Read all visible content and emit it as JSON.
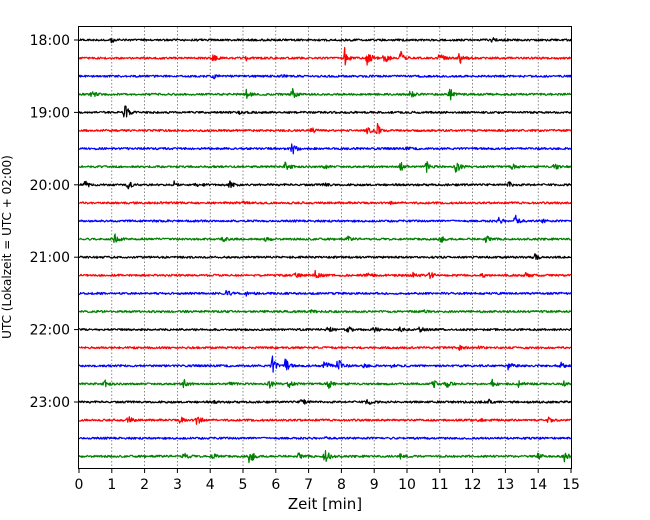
{
  "chart_data": {
    "type": "line",
    "title": "",
    "xlabel": "Zeit  [min]",
    "ylabel": "UTC (Lokalzeit = UTC + 02:00)",
    "xlim": [
      0,
      15
    ],
    "x_ticks": [
      "0",
      "1",
      "2",
      "3",
      "4",
      "5",
      "6",
      "7",
      "8",
      "9",
      "10",
      "11",
      "12",
      "13",
      "14",
      "15"
    ],
    "y_ticks": [
      "18:00",
      "19:00",
      "20:00",
      "21:00",
      "22:00",
      "23:00"
    ],
    "grid": "vertical-dotted",
    "trace_interval_min": 15,
    "trace_colors": [
      "#000000",
      "#ff0000",
      "#0000ff",
      "#008000"
    ],
    "traces": [
      {
        "start": "18:00",
        "events": [
          [
            1.0,
            2
          ],
          [
            12.6,
            2
          ]
        ]
      },
      {
        "start": "18:15",
        "events": [
          [
            4.1,
            3
          ],
          [
            5.1,
            2
          ],
          [
            8.1,
            10
          ],
          [
            8.8,
            9
          ],
          [
            9.3,
            8
          ],
          [
            9.8,
            7
          ],
          [
            11.0,
            5
          ],
          [
            11.6,
            6
          ]
        ]
      },
      {
        "start": "18:30",
        "events": [
          [
            4.1,
            2
          ],
          [
            6.2,
            1
          ]
        ]
      },
      {
        "start": "18:45",
        "events": [
          [
            0.4,
            3
          ],
          [
            5.1,
            5
          ],
          [
            6.5,
            6
          ],
          [
            10.1,
            5
          ],
          [
            11.3,
            7
          ]
        ]
      },
      {
        "start": "19:00",
        "events": [
          [
            1.4,
            8
          ],
          [
            4.9,
            1
          ]
        ]
      },
      {
        "start": "19:15",
        "events": [
          [
            7.1,
            3
          ],
          [
            8.8,
            3
          ],
          [
            9.1,
            6
          ]
        ]
      },
      {
        "start": "19:30",
        "events": [
          [
            6.5,
            8
          ],
          [
            10.0,
            1
          ]
        ]
      },
      {
        "start": "19:45",
        "events": [
          [
            6.3,
            5
          ],
          [
            7.5,
            2
          ],
          [
            9.8,
            5
          ],
          [
            10.6,
            5
          ],
          [
            11.5,
            7
          ],
          [
            13.2,
            3
          ],
          [
            14.5,
            4
          ]
        ]
      },
      {
        "start": "20:00",
        "events": [
          [
            0.2,
            4
          ],
          [
            1.5,
            5
          ],
          [
            2.9,
            3
          ],
          [
            3.6,
            3
          ],
          [
            4.6,
            3
          ],
          [
            7.5,
            2
          ],
          [
            13.1,
            3
          ]
        ]
      },
      {
        "start": "20:15",
        "events": [
          [
            5.0,
            1
          ],
          [
            9.5,
            1
          ]
        ]
      },
      {
        "start": "20:30",
        "events": [
          [
            12.8,
            3
          ],
          [
            13.3,
            6
          ],
          [
            14.1,
            2
          ]
        ]
      },
      {
        "start": "20:45",
        "events": [
          [
            1.1,
            5
          ],
          [
            4.4,
            2
          ],
          [
            5.7,
            2
          ],
          [
            8.2,
            2
          ],
          [
            11.0,
            5
          ],
          [
            12.4,
            4
          ]
        ]
      },
      {
        "start": "21:00",
        "events": [
          [
            13.9,
            4
          ]
        ]
      },
      {
        "start": "21:15",
        "events": [
          [
            6.6,
            3
          ],
          [
            7.2,
            5
          ],
          [
            8.8,
            2
          ],
          [
            10.2,
            3
          ],
          [
            10.7,
            4
          ],
          [
            12.3,
            2
          ],
          [
            13.6,
            3
          ]
        ]
      },
      {
        "start": "21:30",
        "events": [
          [
            4.5,
            3
          ],
          [
            5.1,
            3
          ]
        ]
      },
      {
        "start": "21:45",
        "events": [
          [
            7.1,
            1
          ],
          [
            10.5,
            1
          ]
        ]
      },
      {
        "start": "22:00",
        "events": [
          [
            7.6,
            3
          ],
          [
            8.2,
            4
          ],
          [
            9.0,
            3
          ],
          [
            9.8,
            2
          ],
          [
            10.4,
            3
          ]
        ]
      },
      {
        "start": "22:15",
        "events": [
          [
            11.6,
            2
          ],
          [
            12.2,
            1
          ]
        ]
      },
      {
        "start": "22:30",
        "events": [
          [
            5.9,
            9
          ],
          [
            6.3,
            7
          ],
          [
            7.5,
            7
          ],
          [
            7.9,
            8
          ],
          [
            8.7,
            2
          ],
          [
            9.5,
            2
          ],
          [
            13.1,
            4
          ],
          [
            14.7,
            3
          ]
        ]
      },
      {
        "start": "22:45",
        "events": [
          [
            0.8,
            3
          ],
          [
            3.2,
            4
          ],
          [
            4.6,
            2
          ],
          [
            5.8,
            4
          ],
          [
            6.4,
            4
          ],
          [
            7.6,
            5
          ],
          [
            10.8,
            5
          ],
          [
            11.2,
            6
          ],
          [
            12.6,
            4
          ],
          [
            13.4,
            3
          ],
          [
            14.8,
            3
          ]
        ]
      },
      {
        "start": "23:00",
        "events": [
          [
            4.1,
            1
          ],
          [
            6.8,
            5
          ],
          [
            8.8,
            4
          ],
          [
            12.5,
            2
          ]
        ]
      },
      {
        "start": "23:15",
        "events": [
          [
            1.5,
            4
          ],
          [
            3.1,
            4
          ],
          [
            3.6,
            6
          ],
          [
            12.2,
            2
          ],
          [
            14.3,
            3
          ]
        ]
      },
      {
        "start": "23:30",
        "events": [
          [
            7.5,
            1
          ]
        ]
      },
      {
        "start": "23:45",
        "events": [
          [
            3.2,
            5
          ],
          [
            4.1,
            4
          ],
          [
            5.2,
            10
          ],
          [
            6.7,
            3
          ],
          [
            7.5,
            10
          ],
          [
            9.8,
            2
          ],
          [
            14.0,
            4
          ],
          [
            14.8,
            6
          ]
        ]
      }
    ]
  }
}
